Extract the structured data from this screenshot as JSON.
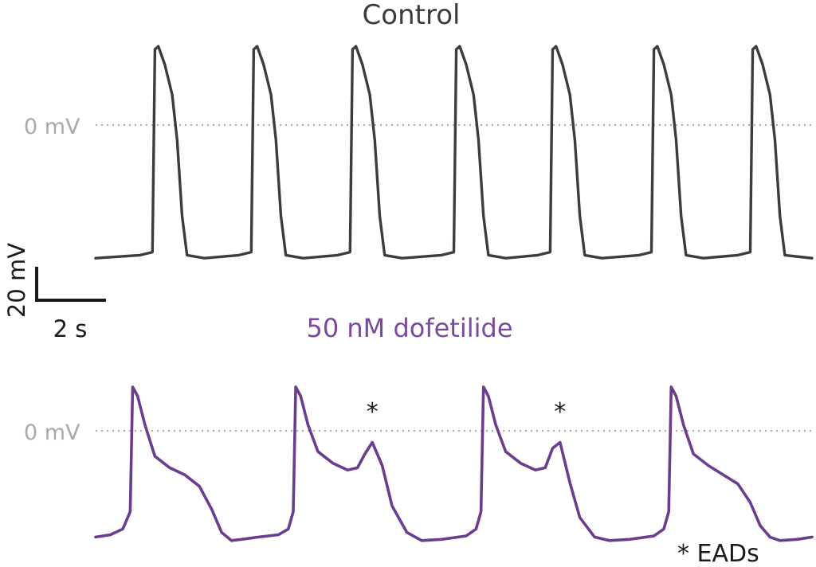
{
  "chart_data": [
    {
      "type": "line",
      "title": "Control",
      "zero_label": "0 mV",
      "color": "#3a3d40",
      "series": [
        {
          "x": [
            0,
            0.9,
            1.15,
            1.2,
            1.27,
            1.4,
            1.55,
            1.65,
            1.75,
            1.85,
            2.2,
            2.9,
            3.15,
            3.2,
            3.27,
            3.4,
            3.55,
            3.65,
            3.75,
            3.85,
            4.2,
            4.9,
            5.15,
            5.2,
            5.27,
            5.4,
            5.55,
            5.65,
            5.75,
            5.85,
            6.2,
            7.0,
            7.25,
            7.3,
            7.37,
            7.5,
            7.65,
            7.75,
            7.85,
            7.95,
            8.3,
            8.95,
            9.2,
            9.25,
            9.32,
            9.45,
            9.6,
            9.7,
            9.8,
            9.9,
            10.25,
            11.0,
            11.25,
            11.3,
            11.37,
            11.5,
            11.65,
            11.75,
            11.85,
            11.95,
            12.3,
            13.0,
            13.25,
            13.3,
            13.37,
            13.5,
            13.65,
            13.75,
            13.85,
            13.95,
            14.5
          ],
          "y": [
            -88,
            -86,
            -84,
            50,
            52,
            40,
            20,
            -10,
            -60,
            -86,
            -88,
            -86,
            -84,
            50,
            52,
            40,
            20,
            -10,
            -60,
            -86,
            -88,
            -86,
            -84,
            50,
            52,
            40,
            20,
            -10,
            -60,
            -86,
            -88,
            -86,
            -84,
            50,
            52,
            40,
            20,
            -10,
            -60,
            -86,
            -88,
            -86,
            -84,
            50,
            52,
            40,
            20,
            -10,
            -60,
            -86,
            -88,
            -86,
            -84,
            50,
            52,
            40,
            20,
            -10,
            -60,
            -86,
            -88,
            -86,
            -84,
            50,
            52,
            40,
            20,
            -10,
            -60,
            -86,
            -88
          ]
        }
      ]
    },
    {
      "type": "line",
      "title": "50 nM dofetilide",
      "zero_label": "0 mV",
      "annotation": "*",
      "legend": "* EADs",
      "color": "#6a3d8f",
      "eads": [
        [
          5.6,
          4.2
        ],
        [
          9.4,
          4.2
        ]
      ],
      "series": [
        {
          "x": [
            0,
            0.3,
            0.55,
            0.7,
            0.75,
            0.85,
            1.0,
            1.2,
            1.5,
            1.8,
            2.1,
            2.35,
            2.55,
            2.75,
            2.95,
            3.3,
            3.7,
            3.9,
            4.0,
            4.05,
            4.15,
            4.3,
            4.5,
            4.8,
            5.1,
            5.3,
            5.45,
            5.6,
            5.8,
            6.0,
            6.3,
            6.6,
            7.0,
            7.5,
            7.7,
            7.8,
            7.85,
            7.95,
            8.1,
            8.3,
            8.6,
            8.9,
            9.1,
            9.25,
            9.4,
            9.6,
            9.8,
            10.1,
            10.4,
            10.8,
            11.3,
            11.5,
            11.6,
            11.65,
            11.75,
            11.9,
            12.1,
            12.4,
            12.7,
            13.0,
            13.25,
            13.45,
            13.65,
            13.85,
            14.2,
            14.5
          ],
          "y": [
            -92,
            -90,
            -85,
            -70,
            38,
            30,
            5,
            -22,
            -32,
            -38,
            -48,
            -68,
            -88,
            -95,
            -94,
            -92,
            -90,
            -85,
            -70,
            38,
            30,
            5,
            -18,
            -28,
            -34,
            -32,
            -20,
            -10,
            -30,
            -65,
            -88,
            -95,
            -94,
            -91,
            -85,
            -70,
            38,
            30,
            5,
            -18,
            -28,
            -34,
            -32,
            -15,
            -10,
            -45,
            -75,
            -92,
            -95,
            -94,
            -91,
            -85,
            -70,
            38,
            30,
            5,
            -20,
            -30,
            -38,
            -46,
            -62,
            -82,
            -92,
            -95,
            -94,
            -92
          ]
        }
      ]
    }
  ],
  "scale_bar": {
    "vertical_label": "20 mV",
    "horizontal_label": "2 s",
    "vertical_value_mv": 20,
    "horizontal_value_s": 2
  },
  "colors": {
    "zero_line": "#aaaaaa",
    "zero_label": "#a9a9a9",
    "scale_bar": "#1a1a1a"
  }
}
